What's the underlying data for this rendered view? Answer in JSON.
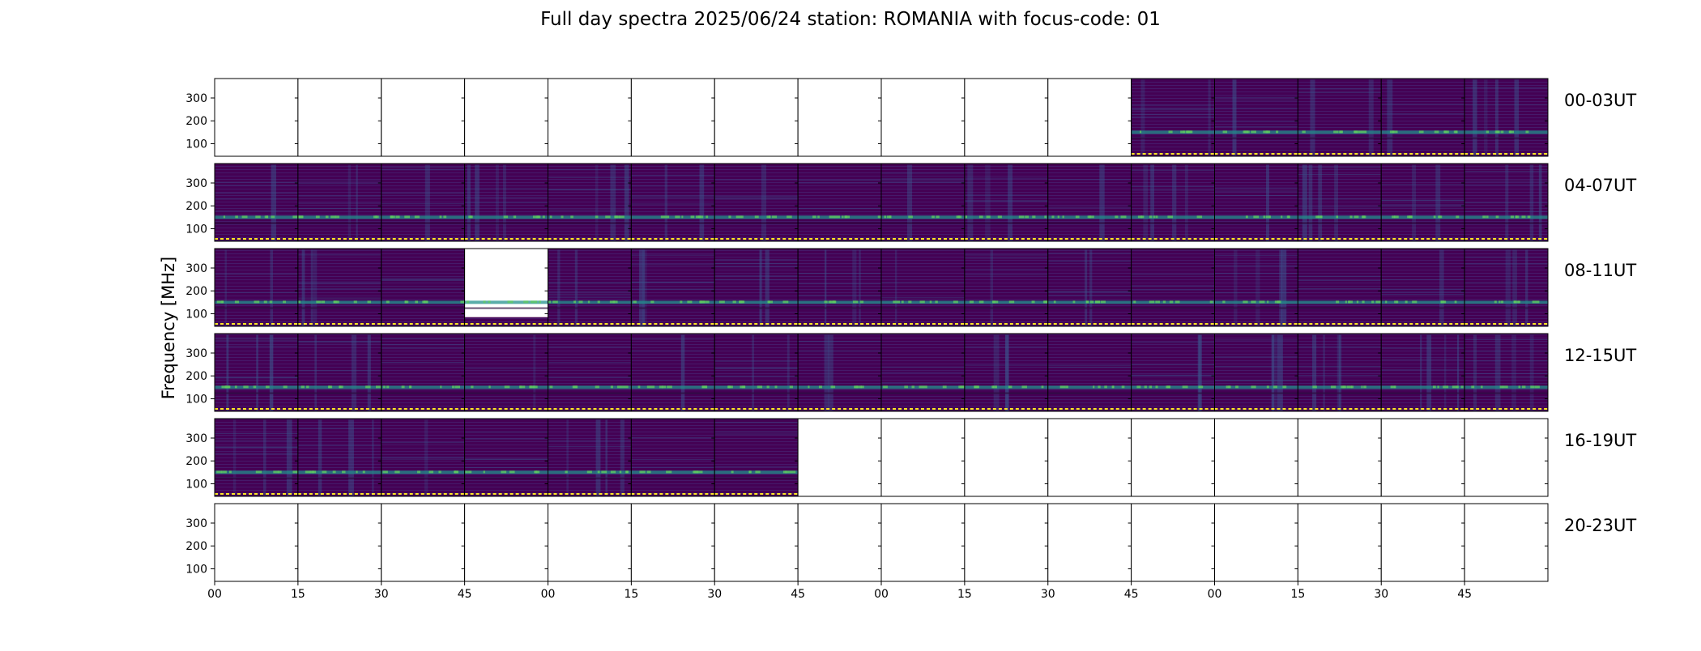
{
  "chart_data": {
    "type": "heatmap",
    "title": "Full day spectra 2025/06/24 station: ROMANIA with focus-code: 01",
    "ylabel": "Frequency [MHz]",
    "xlabel": "",
    "colormap": "viridis",
    "colors": {
      "background_low": "#440154",
      "mid": "#3b528b",
      "band_high": "#21918c",
      "peak": "#5ec962",
      "marker_line": "#fde725"
    },
    "ylim": [
      45,
      385
    ],
    "y_ticks": [
      100,
      200,
      300
    ],
    "x_tick_labels": [
      "00",
      "15",
      "30",
      "45",
      "00",
      "15",
      "30",
      "45",
      "00",
      "15",
      "30",
      "45",
      "00",
      "15",
      "30",
      "45"
    ],
    "panels_per_row": 16,
    "panel_minutes": 15,
    "rows": [
      {
        "label": "00-03UT",
        "panels": [
          0,
          0,
          0,
          0,
          0,
          0,
          0,
          0,
          0,
          0,
          0,
          1,
          1,
          1,
          1,
          1
        ]
      },
      {
        "label": "04-07UT",
        "panels": [
          1,
          1,
          1,
          1,
          1,
          1,
          1,
          1,
          1,
          1,
          1,
          1,
          1,
          1,
          1,
          1
        ]
      },
      {
        "label": "08-11UT",
        "panels": [
          1,
          1,
          1,
          2,
          1,
          1,
          1,
          1,
          1,
          1,
          1,
          1,
          1,
          1,
          1,
          1
        ]
      },
      {
        "label": "12-15UT",
        "panels": [
          1,
          1,
          1,
          1,
          1,
          1,
          1,
          1,
          1,
          1,
          1,
          1,
          1,
          1,
          1,
          1
        ]
      },
      {
        "label": "16-19UT",
        "panels": [
          1,
          1,
          1,
          1,
          1,
          1,
          1,
          0,
          0,
          0,
          0,
          0,
          0,
          0,
          0,
          0
        ]
      },
      {
        "label": "20-23UT",
        "panels": [
          0,
          0,
          0,
          0,
          0,
          0,
          0,
          0,
          0,
          0,
          0,
          0,
          0,
          0,
          0,
          0
        ]
      }
    ],
    "panel_codes": {
      "0": "no data",
      "1": "spectrum",
      "2": "partial spectrum"
    },
    "dominant_band_mhz": 150
  }
}
